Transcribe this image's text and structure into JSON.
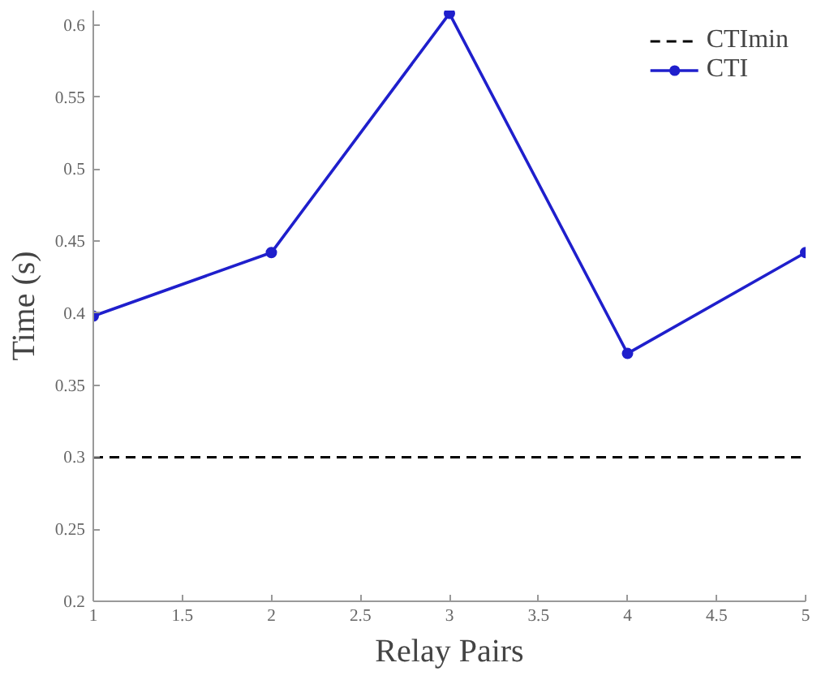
{
  "chart_data": {
    "type": "line",
    "xlabel": "Relay Pairs",
    "ylabel": "Time (s)",
    "x": [
      1,
      2,
      3,
      4,
      5
    ],
    "series": [
      {
        "name": "CTI",
        "color": "#1f1fcc",
        "values": [
          0.398,
          0.442,
          0.608,
          0.372,
          0.442
        ]
      }
    ],
    "ref_lines": [
      {
        "axis": "y",
        "value": 0.3,
        "label": "CTImin",
        "color": "#000000",
        "line_style": "dashed"
      }
    ],
    "xlim": [
      1,
      5
    ],
    "ylim": [
      0.2,
      0.61
    ],
    "xticks": [
      1,
      1.5,
      2,
      2.5,
      3,
      3.5,
      4,
      4.5,
      5
    ],
    "yticks": [
      0.2,
      0.25,
      0.3,
      0.35,
      0.4,
      0.45,
      0.5,
      0.55,
      0.6
    ],
    "grid": false,
    "legend": "top right",
    "marker": "circle",
    "line_style": "solid"
  }
}
